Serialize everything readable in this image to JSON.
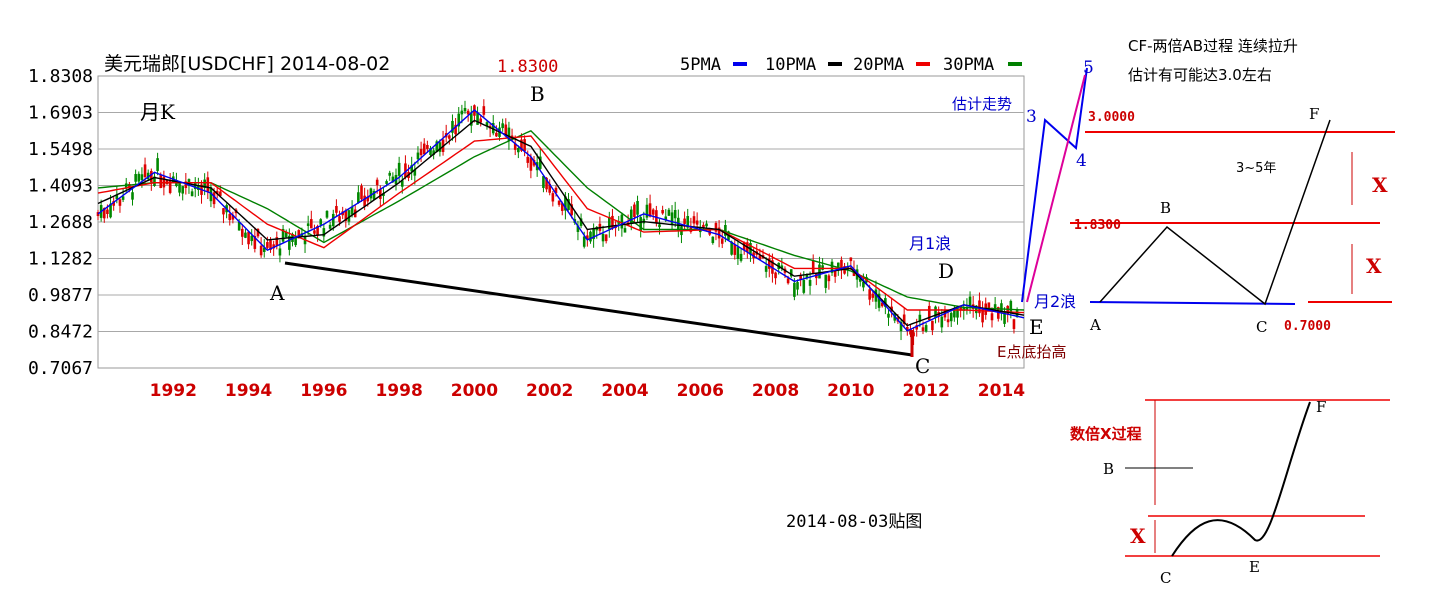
{
  "chart_data": {
    "type": "candlestick",
    "title": "美元瑞郎[USDCHF] 2014-08-02",
    "period_label": "月K",
    "ylim": [
      0.7067,
      1.8308
    ],
    "y_ticks": [
      "1.8308",
      "1.6903",
      "1.5498",
      "1.4093",
      "1.2688",
      "1.1282",
      "0.9877",
      "0.8472",
      "0.7067"
    ],
    "x_ticks": [
      "1992",
      "1994",
      "1996",
      "1998",
      "2000",
      "2002",
      "2004",
      "2006",
      "2008",
      "2010",
      "2012",
      "2014"
    ],
    "x_range": [
      1990.0,
      2014.6
    ],
    "legend": [
      {
        "name": "5PMA",
        "color": "#0000ee"
      },
      {
        "name": "10PMA",
        "color": "#000000"
      },
      {
        "name": "20PMA",
        "color": "#ee0000"
      },
      {
        "name": "30PMA",
        "color": "#008000"
      }
    ],
    "peak_label": "1.8300",
    "points": [
      {
        "label": "A",
        "x": 1994.8,
        "y": 1.13
      },
      {
        "label": "B",
        "x": 2001.0,
        "y": 1.83
      },
      {
        "label": "C",
        "x": 2011.6,
        "y": 0.72
      },
      {
        "label": "D",
        "x": 2012.6,
        "y": 1.05
      },
      {
        "label": "E",
        "x": 2014.6,
        "y": 0.88
      }
    ],
    "ma_series": [
      {
        "name": "30PMA",
        "x": [
          1990.0,
          1991.5,
          1993.0,
          1994.5,
          1996.0,
          1998.0,
          2000.0,
          2001.5,
          2003.0,
          2004.5,
          2006.5,
          2008.5,
          2010.0,
          2011.5,
          2013.0,
          2014.6
        ],
        "y": [
          1.4,
          1.42,
          1.42,
          1.32,
          1.19,
          1.35,
          1.52,
          1.62,
          1.4,
          1.24,
          1.24,
          1.14,
          1.08,
          0.98,
          0.94,
          0.93
        ]
      },
      {
        "name": "20PMA",
        "x": [
          1990.0,
          1991.5,
          1993.0,
          1994.5,
          1996.0,
          1998.0,
          2000.0,
          2001.5,
          2003.0,
          2004.5,
          2006.5,
          2008.5,
          2010.0,
          2011.5,
          2013.0,
          2014.6
        ],
        "y": [
          1.38,
          1.42,
          1.42,
          1.26,
          1.17,
          1.38,
          1.58,
          1.6,
          1.32,
          1.23,
          1.24,
          1.09,
          1.09,
          0.93,
          0.93,
          0.92
        ]
      },
      {
        "name": "10PMA",
        "x": [
          1990.0,
          1991.5,
          1993.0,
          1994.5,
          1996.0,
          1998.0,
          2000.0,
          2001.5,
          2003.0,
          2004.5,
          2006.5,
          2008.5,
          2010.0,
          2011.5,
          2013.0,
          2014.6
        ],
        "y": [
          1.34,
          1.44,
          1.4,
          1.2,
          1.22,
          1.42,
          1.66,
          1.56,
          1.24,
          1.27,
          1.24,
          1.06,
          1.09,
          0.87,
          0.95,
          0.91
        ]
      },
      {
        "name": "5PMA",
        "x": [
          1990.0,
          1991.5,
          1993.0,
          1994.5,
          1996.0,
          1998.0,
          2000.0,
          2001.5,
          2003.0,
          2004.5,
          2006.5,
          2008.5,
          2010.0,
          2011.5,
          2013.0,
          2014.6
        ],
        "y": [
          1.3,
          1.46,
          1.38,
          1.16,
          1.26,
          1.44,
          1.7,
          1.52,
          1.2,
          1.3,
          1.22,
          1.04,
          1.1,
          0.85,
          0.95,
          0.9
        ]
      }
    ]
  },
  "annotations": {
    "forecast_label": "估计走势",
    "wave_3": "3",
    "wave_4": "4",
    "wave_5": "5",
    "month_wave_1": "月1浪",
    "month_wave_2": "月2浪",
    "e_note": "E点底抬高",
    "date_stamp": "2014-08-03贴图"
  },
  "diagram1": {
    "title_line1": "CF-两倍AB过程 连续拉升",
    "title_line2": "估计有可能达3.0左右",
    "level_3": "3.0000",
    "level_183": "1.8300",
    "level_07": "0.7000",
    "duration": "3~5年",
    "x_mark": "X",
    "A": "A",
    "B": "B",
    "C": "C",
    "F": "F"
  },
  "diagram2": {
    "title": "数倍X过程",
    "x_mark": "X",
    "B": "B",
    "C": "C",
    "E": "E",
    "F": "F"
  }
}
